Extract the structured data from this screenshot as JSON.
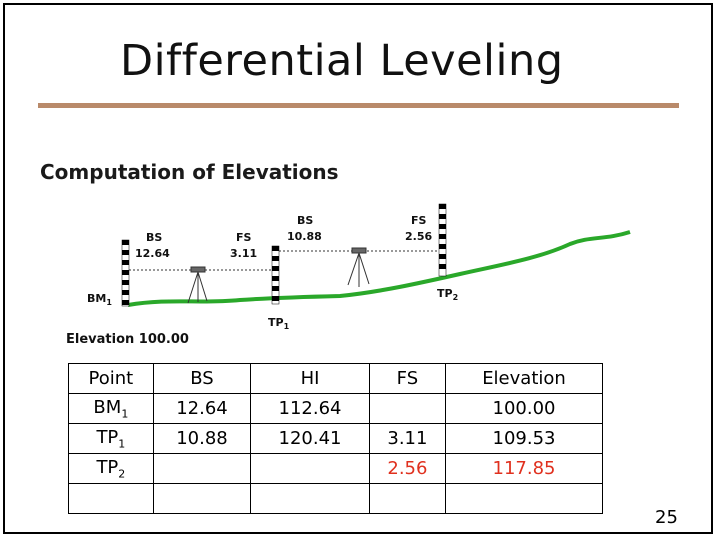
{
  "slide": {
    "title": "Differential Leveling",
    "subtitle": "Computation of Elevations",
    "page_number": "25"
  },
  "diagram": {
    "labels": {
      "bs1_label": "BS",
      "bs1_value": "12.64",
      "fs1_label": "FS",
      "fs1_value": "3.11",
      "bs2_label": "BS",
      "bs2_value": "10.88",
      "fs2_label": "FS",
      "fs2_value": "2.56",
      "bm1": "BM",
      "bm1_sub": "1",
      "tp1": "TP",
      "tp1_sub": "1",
      "tp2": "TP",
      "tp2_sub": "2"
    },
    "elevation_note": "Elevation 100.00",
    "colors": {
      "ground": "#2aa82a",
      "highlight": "#e0301e"
    }
  },
  "table": {
    "headers": [
      "Point",
      "BS",
      "HI",
      "FS",
      "Elevation"
    ],
    "rows": [
      {
        "point": "BM",
        "sub": "1",
        "bs": "12.64",
        "hi": "112.64",
        "fs": "",
        "elevation": "100.00"
      },
      {
        "point": "TP",
        "sub": "1",
        "bs": "10.88",
        "hi": "120.41",
        "fs": "3.11",
        "elevation": "109.53"
      },
      {
        "point": "TP",
        "sub": "2",
        "bs": "",
        "hi": "",
        "fs": "2.56",
        "elevation": "117.85"
      },
      {
        "point": "",
        "sub": "",
        "bs": "",
        "hi": "",
        "fs": "",
        "elevation": ""
      }
    ]
  }
}
